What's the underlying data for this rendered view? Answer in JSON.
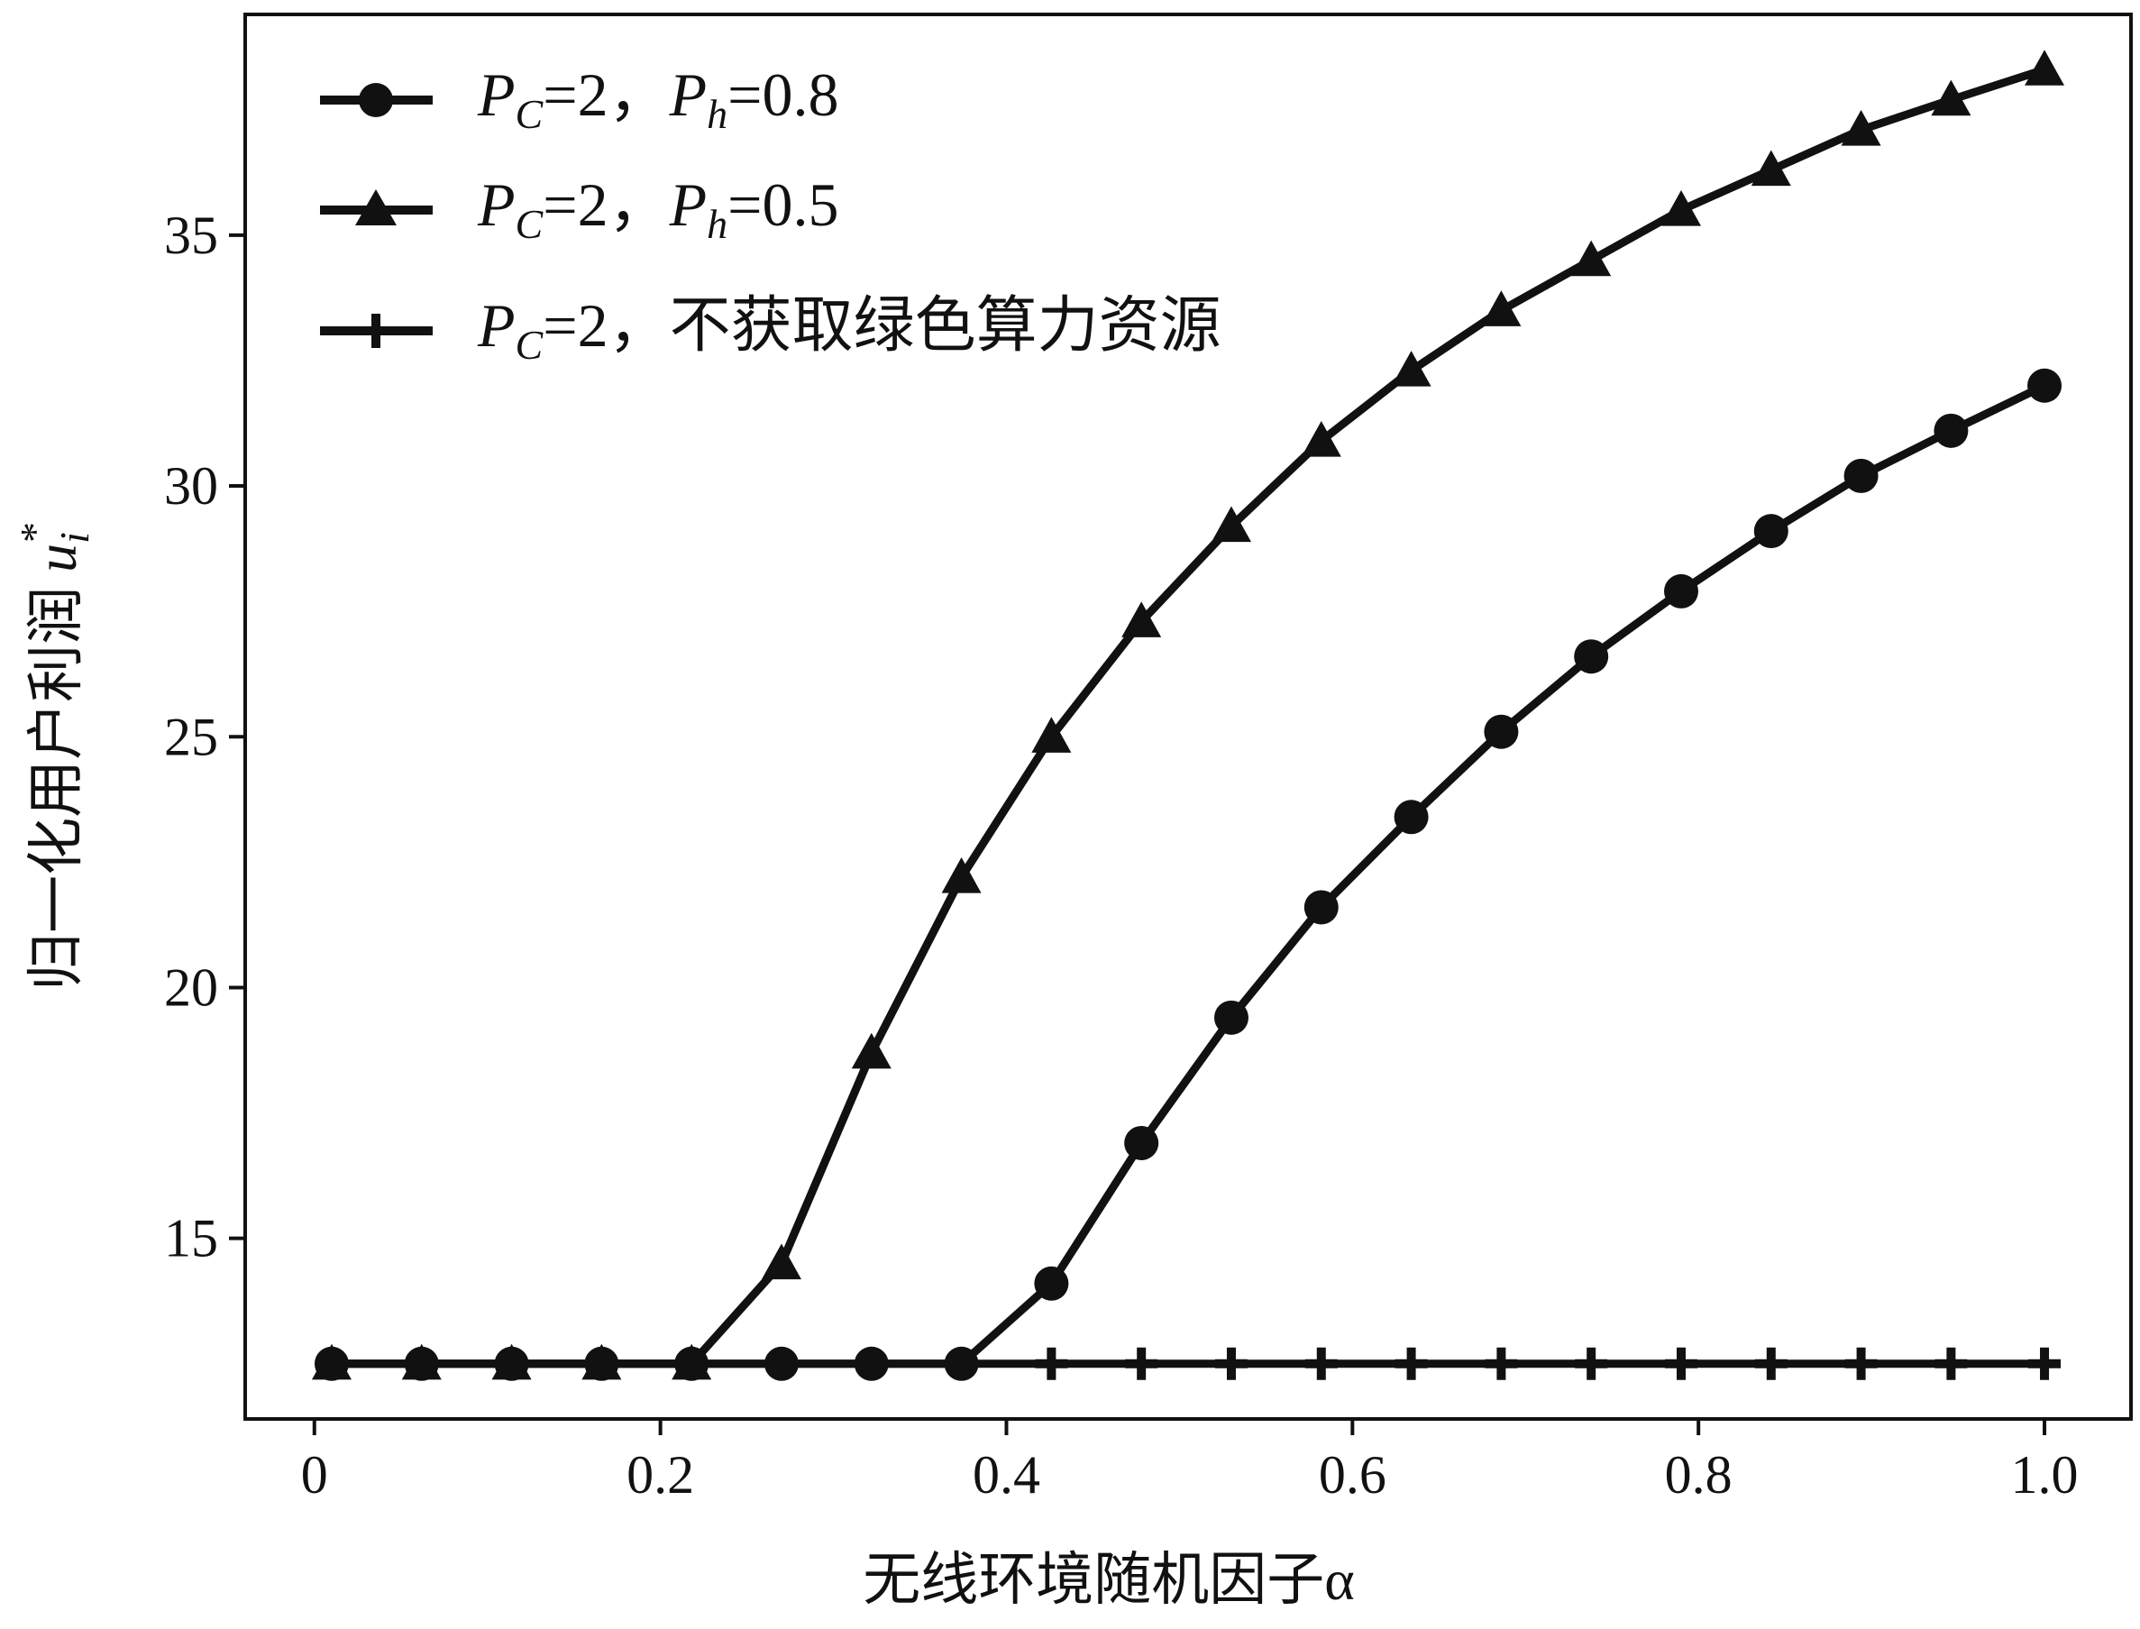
{
  "chart_data": {
    "type": "line",
    "xlabel": "无线环境随机因子α",
    "ylabel": "归一化用户利润 u_i^*",
    "ylabel_parts": {
      "text": "归一化用户利润 ",
      "var": "u",
      "sub": "i",
      "sup": "*"
    },
    "xlim": [
      -0.04,
      1.05
    ],
    "ylim": [
      11.4,
      39.4
    ],
    "x_ticks": [
      0,
      0.2,
      0.4,
      0.6,
      0.8,
      1.0
    ],
    "x_tick_labels": [
      "0",
      "0.2",
      "0.4",
      "0.6",
      "0.8",
      "1.0"
    ],
    "y_ticks": [
      15,
      20,
      25,
      30,
      35
    ],
    "y_tick_labels": [
      "15",
      "20",
      "25",
      "30",
      "35"
    ],
    "legend_position": "top-left",
    "grid": false,
    "line_color": "#111111",
    "x": [
      0.01,
      0.062,
      0.114,
      0.166,
      0.218,
      0.27,
      0.322,
      0.374,
      0.426,
      0.478,
      0.53,
      0.582,
      0.634,
      0.686,
      0.738,
      0.79,
      0.842,
      0.894,
      0.946,
      1.0
    ],
    "series": [
      {
        "name": "P_C=2，P_h=0.8",
        "name_parts": {
          "p1": "P",
          "s1": "C",
          "t1": "=2，",
          "p2": "P",
          "s2": "h",
          "t2": "=0.8"
        },
        "marker": "circle",
        "values": [
          12.5,
          12.5,
          12.5,
          12.5,
          12.5,
          12.5,
          12.5,
          12.5,
          14.1,
          16.9,
          19.4,
          21.6,
          23.4,
          25.1,
          26.6,
          27.9,
          29.1,
          30.2,
          31.1,
          32.0
        ]
      },
      {
        "name": "P_C=2，P_h=0.5",
        "name_parts": {
          "p1": "P",
          "s1": "C",
          "t1": "=2，",
          "p2": "P",
          "s2": "h",
          "t2": "=0.5"
        },
        "marker": "triangle",
        "values": [
          12.5,
          12.5,
          12.5,
          12.5,
          12.5,
          14.5,
          18.7,
          22.2,
          25.0,
          27.3,
          29.2,
          30.9,
          32.3,
          33.5,
          34.5,
          35.5,
          36.3,
          37.1,
          37.7,
          38.3
        ]
      },
      {
        "name": "P_C=2，不获取绿色算力资源",
        "name_parts": {
          "p1": "P",
          "s1": "C",
          "t1": "=2，不获取绿色算力资源"
        },
        "marker": "plus",
        "values": [
          12.5,
          12.5,
          12.5,
          12.5,
          12.5,
          12.5,
          12.5,
          12.5,
          12.5,
          12.5,
          12.5,
          12.5,
          12.5,
          12.5,
          12.5,
          12.5,
          12.5,
          12.5,
          12.5,
          12.5
        ]
      }
    ]
  }
}
